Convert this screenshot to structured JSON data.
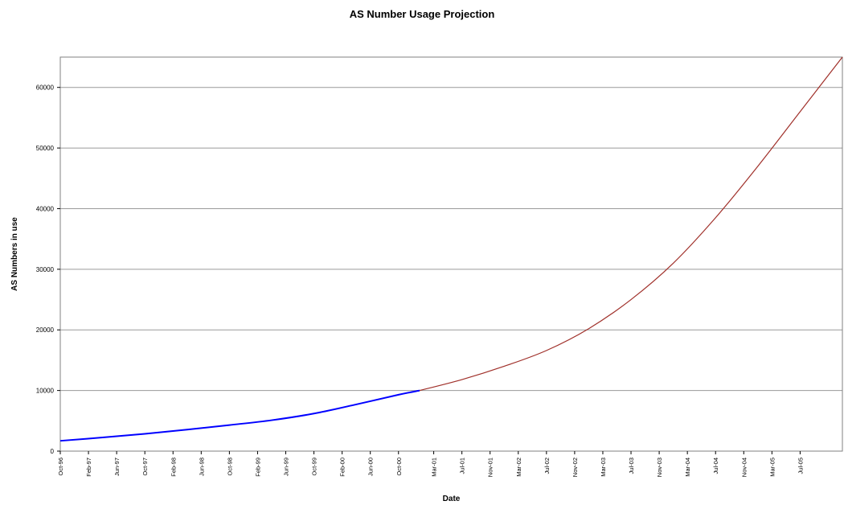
{
  "chart_data": {
    "type": "line",
    "title": "AS Number Usage Projection",
    "xlabel": "Date",
    "ylabel": "AS Numbers in use",
    "ylim": [
      0,
      65000
    ],
    "yticks": [
      0,
      10000,
      20000,
      30000,
      40000,
      50000,
      60000
    ],
    "ytick_labels": [
      "0",
      "10000",
      "20000",
      "30000",
      "40000",
      "50000",
      "60000"
    ],
    "xlim": [
      "1996-10",
      "2006-01"
    ],
    "xticks": [
      {
        "date": "1996-10",
        "label": "Oct-96"
      },
      {
        "date": "1997-02",
        "label": "Feb-97"
      },
      {
        "date": "1997-06",
        "label": "Jun-97"
      },
      {
        "date": "1997-10",
        "label": "Oct-97"
      },
      {
        "date": "1998-02",
        "label": "Feb-98"
      },
      {
        "date": "1998-06",
        "label": "Jun-98"
      },
      {
        "date": "1998-10",
        "label": "Oct-98"
      },
      {
        "date": "1999-02",
        "label": "Feb-99"
      },
      {
        "date": "1999-06",
        "label": "Jun-99"
      },
      {
        "date": "1999-10",
        "label": "Oct-99"
      },
      {
        "date": "2000-02",
        "label": "Feb-00"
      },
      {
        "date": "2000-06",
        "label": "Jun-00"
      },
      {
        "date": "2000-10",
        "label": "Oct-00"
      },
      {
        "date": "2001-03",
        "label": "Mar-01"
      },
      {
        "date": "2001-07",
        "label": "Jul-01"
      },
      {
        "date": "2001-11",
        "label": "Nov-01"
      },
      {
        "date": "2002-03",
        "label": "Mar-02"
      },
      {
        "date": "2002-07",
        "label": "Jul-02"
      },
      {
        "date": "2002-11",
        "label": "Nov-02"
      },
      {
        "date": "2003-03",
        "label": "Mar-03"
      },
      {
        "date": "2003-07",
        "label": "Jul-03"
      },
      {
        "date": "2003-11",
        "label": "Nov-03"
      },
      {
        "date": "2004-03",
        "label": "Mar-04"
      },
      {
        "date": "2004-07",
        "label": "Jul-04"
      },
      {
        "date": "2004-11",
        "label": "Nov-04"
      },
      {
        "date": "2005-03",
        "label": "Mar-05"
      },
      {
        "date": "2005-07",
        "label": "Jul-05"
      }
    ],
    "grid": "horizontal",
    "series": [
      {
        "color": "#0000ff",
        "x": [
          "1996-10",
          "1997-04",
          "1997-10",
          "1998-04",
          "1998-10",
          "1999-04",
          "1999-10",
          "2000-04",
          "2000-10",
          "2001-01"
        ],
        "y": [
          1700,
          2250,
          2850,
          3550,
          4300,
          5100,
          6200,
          7700,
          9300,
          10000
        ]
      },
      {
        "color": "#a0302a",
        "x": [
          "2001-01",
          "2001-07",
          "2002-01",
          "2002-07",
          "2003-01",
          "2003-07",
          "2004-01",
          "2004-07",
          "2005-01",
          "2005-07",
          "2006-01"
        ],
        "y": [
          10000,
          11800,
          14000,
          16600,
          20200,
          25000,
          31000,
          38500,
          47000,
          56000,
          65000
        ]
      }
    ]
  }
}
